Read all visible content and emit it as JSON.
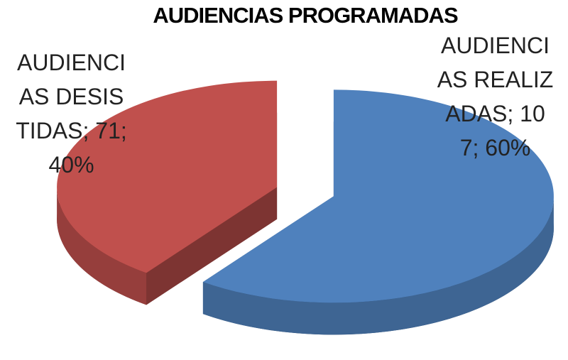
{
  "chart_data": {
    "type": "pie",
    "title": "AUDIENCIAS PROGRAMADAS",
    "values": [
      107,
      71
    ],
    "value_labels": [
      "AUDIENCIAS REALIZADAS; 107; 60%",
      "AUDIENCIAS DESISTIDAS; 71; 40%"
    ],
    "colors": [
      "#4f81bd",
      "#c0504d"
    ]
  }
}
